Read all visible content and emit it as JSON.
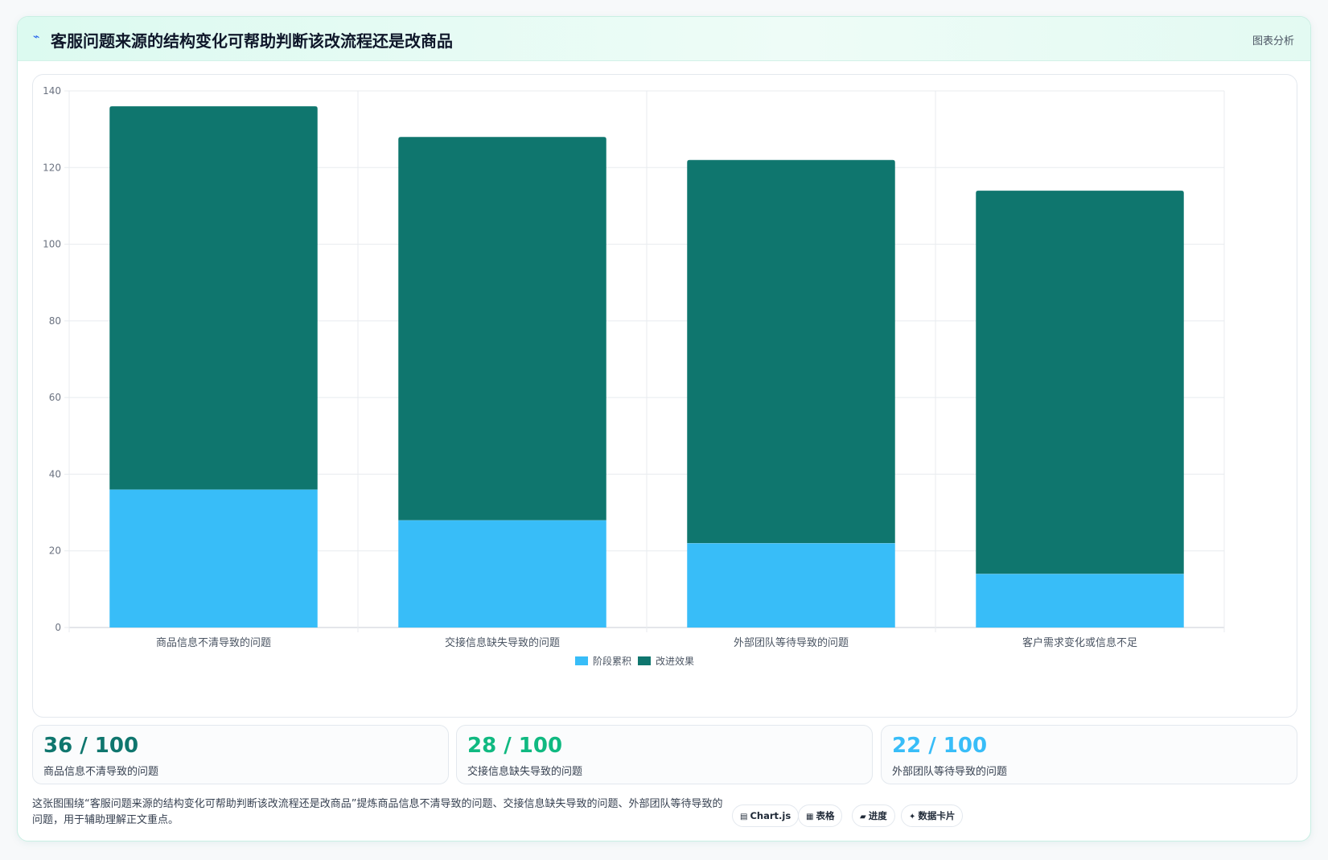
{
  "header": {
    "icon": "trend-line-icon",
    "title": "客服问题来源的结构变化可帮助判断该改流程还是改商品",
    "badge": "图表分析"
  },
  "chart_data": {
    "type": "bar",
    "stacked": true,
    "categories": [
      "商品信息不清导致的问题",
      "交接信息缺失导致的问题",
      "外部团队等待导致的问题",
      "客户需求变化或信息不足"
    ],
    "series": [
      {
        "name": "阶段累积",
        "color": "#38bdf8",
        "values": [
          36,
          28,
          22,
          14
        ]
      },
      {
        "name": "改进效果",
        "color": "#0f766e",
        "values": [
          100,
          100,
          100,
          100
        ]
      }
    ],
    "ylim": [
      0,
      140
    ],
    "yticks": [
      0,
      20,
      40,
      60,
      80,
      100,
      120,
      140
    ],
    "grid": true,
    "legend": "bottom"
  },
  "kpis": [
    {
      "value": "36 / 100",
      "label": "商品信息不清导致的问题",
      "color": "#0f766e"
    },
    {
      "value": "28 / 100",
      "label": "交接信息缺失导致的问题",
      "color": "#10b981"
    },
    {
      "value": "22 / 100",
      "label": "外部团队等待导致的问题",
      "color": "#38bdf8"
    }
  ],
  "footer": {
    "text": "这张图围绕“客服问题来源的结构变化可帮助判断该改流程还是改商品”提炼商品信息不清导致的问题、交接信息缺失导致的问题、外部团队等待导致的问题，用于辅助理解正文重点。"
  },
  "chips": [
    {
      "icon": "chart-icon",
      "glyph": "▤",
      "label": "Chart.js"
    },
    {
      "icon": "table-icon",
      "glyph": "▦",
      "label": "表格"
    },
    {
      "icon": "progress-icon",
      "glyph": "▰",
      "label": "进度"
    },
    {
      "icon": "sparkle-icon",
      "glyph": "✦",
      "label": "数据卡片"
    }
  ]
}
